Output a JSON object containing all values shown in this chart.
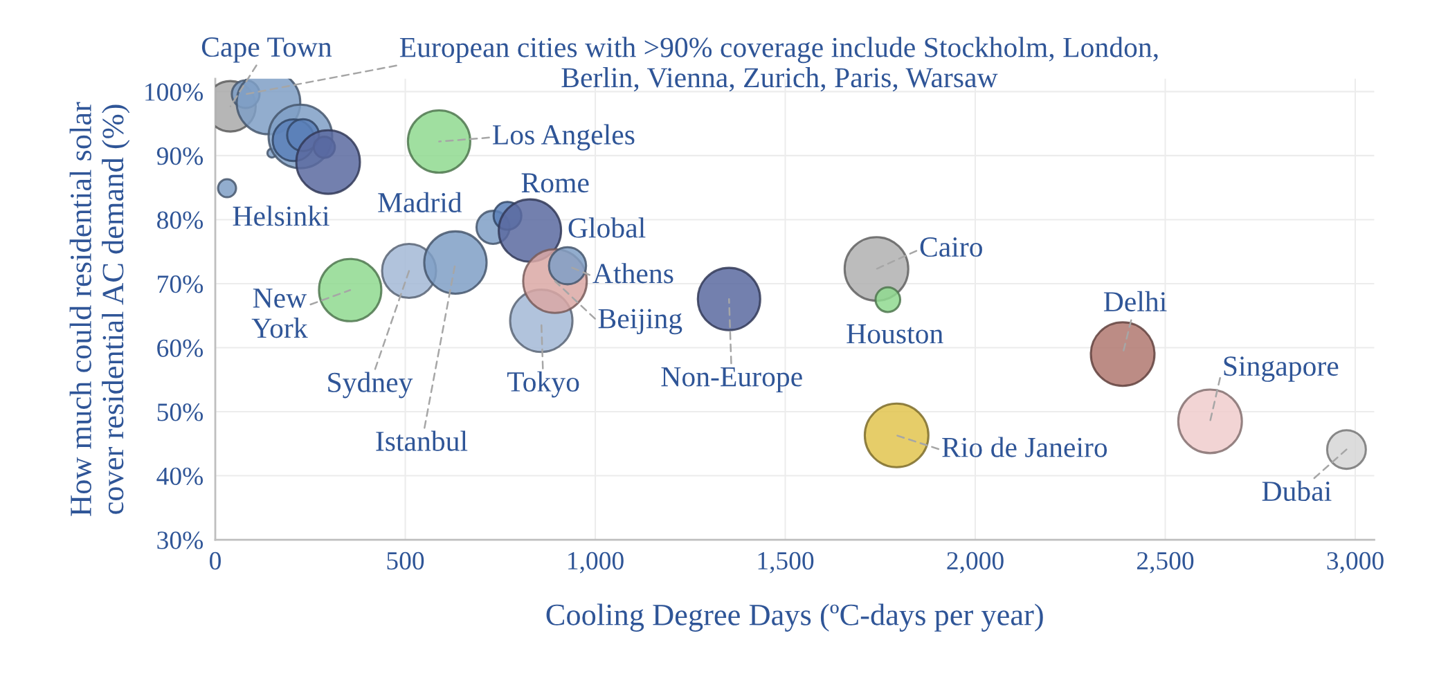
{
  "chart_data": {
    "type": "bubble",
    "xlabel": "Cooling Degree Days (ºC-days per year)",
    "ylabel": "How much could residential solar\ncover residential AC demand (%)",
    "x": [
      40,
      80,
      140,
      149,
      224,
      206,
      231,
      287,
      297,
      31,
      589,
      355,
      510,
      632,
      731,
      769,
      828,
      858,
      894,
      927,
      1352,
      1740,
      1770,
      2388,
      2618,
      1793,
      2977
    ],
    "values": [
      97.7,
      99.6,
      98.3,
      90.4,
      93.0,
      92.4,
      93.2,
      91.3,
      89.0,
      84.9,
      92.2,
      69.0,
      72.0,
      73.3,
      78.8,
      80.6,
      78.3,
      64.2,
      70.4,
      72.8,
      67.6,
      72.3,
      67.5,
      59.0,
      48.5,
      46.3,
      44.1
    ],
    "sizes": [
      0.63,
      0.19,
      1.0,
      0.02,
      1.0,
      0.43,
      0.25,
      0.11,
      1.0,
      0.08,
      0.96,
      0.96,
      0.72,
      0.96,
      0.27,
      0.19,
      0.96,
      0.96,
      1.0,
      0.34,
      0.96,
      1.0,
      0.15,
      1.0,
      1.0,
      1.0,
      0.37
    ],
    "colors": [
      "#a9a9a9",
      "#7f9fc6",
      "#7f9fc6",
      "#7f9fc6",
      "#7f9fc6",
      "#5b80b8",
      "#5b80b8",
      "#4a62a8",
      "#5b6aa0",
      "#7f9fc6",
      "#8fd98f",
      "#8fd98f",
      "#a3b8d6",
      "#7f9fc6",
      "#7f9fc6",
      "#5b80b8",
      "#5b6aa0",
      "#a3b8d6",
      "#dba8a5",
      "#7f9fc6",
      "#5b6aa0",
      "#b0b0b0",
      "#8fd98f",
      "#b07870",
      "#f0cccc",
      "#e2c44f",
      "#d6d6d6"
    ],
    "xlim": [
      0,
      3050
    ],
    "ylim": [
      30,
      102
    ],
    "xticks": [
      0,
      {
        "value": 500,
        "label": "500"
      },
      {
        "value": 1000,
        "label": "1,000"
      },
      {
        "value": 1500,
        "label": "1,500"
      },
      {
        "value": 2000,
        "label": "2,000"
      },
      {
        "value": 2500,
        "label": "2,500"
      },
      {
        "value": 3000,
        "label": "3,000"
      }
    ],
    "yticks": [
      {
        "value": 30,
        "label": "30%"
      },
      {
        "value": 40,
        "label": "40%"
      },
      {
        "value": 50,
        "label": "50%"
      },
      {
        "value": 60,
        "label": "60%"
      },
      {
        "value": 70,
        "label": "70%"
      },
      {
        "value": 80,
        "label": "80%"
      },
      {
        "value": 90,
        "label": "90%"
      },
      {
        "value": 100,
        "label": "100%"
      }
    ],
    "grid": true,
    "legend": false,
    "annotations": [
      {
        "text": "Cape Town",
        "x": 40,
        "y": 97.7
      },
      {
        "text": "European cities with >90% coverage include Stockholm, London,\nBerlin, Vienna, Zurich, Paris, Warsaw",
        "x": 80,
        "y": 99.6
      },
      {
        "text": "Helsinki",
        "x": 31,
        "y": 84.9
      },
      {
        "text": "Los Angeles",
        "x": 589,
        "y": 92.2
      },
      {
        "text": "Madrid",
        "x": 731,
        "y": 78.8
      },
      {
        "text": "Rome",
        "x": 769,
        "y": 80.6
      },
      {
        "text": "Global",
        "x": 828,
        "y": 78.3
      },
      {
        "text": "Athens",
        "x": 927,
        "y": 72.8
      },
      {
        "text": "Beijing",
        "x": 894,
        "y": 70.4
      },
      {
        "text": "Tokyo",
        "x": 858,
        "y": 64.2
      },
      {
        "text": "New\nYork",
        "x": 355,
        "y": 69.0
      },
      {
        "text": "Sydney",
        "x": 510,
        "y": 72.0
      },
      {
        "text": "Istanbul",
        "x": 632,
        "y": 73.3
      },
      {
        "text": "Non-Europe",
        "x": 1352,
        "y": 67.6
      },
      {
        "text": "Cairo",
        "x": 1740,
        "y": 72.3
      },
      {
        "text": "Houston",
        "x": 1770,
        "y": 67.5
      },
      {
        "text": "Delhi",
        "x": 2388,
        "y": 59.0
      },
      {
        "text": "Singapore",
        "x": 2618,
        "y": 48.5
      },
      {
        "text": "Rio de Janeiro",
        "x": 1793,
        "y": 46.3
      },
      {
        "text": "Dubai",
        "x": 2977,
        "y": 44.1
      }
    ]
  }
}
